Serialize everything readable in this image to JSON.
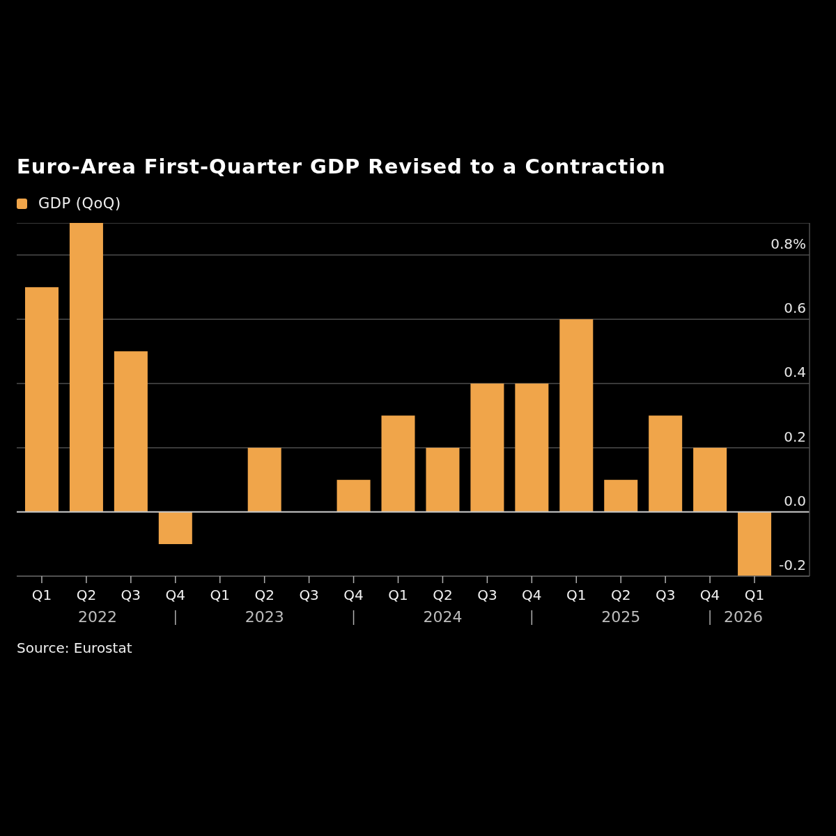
{
  "chart_data": {
    "type": "bar",
    "title": "Euro-Area First-Quarter GDP Revised to a Contraction",
    "categories": [
      "Q1",
      "Q2",
      "Q3",
      "Q4",
      "Q1",
      "Q2",
      "Q3",
      "Q4",
      "Q1",
      "Q2",
      "Q3",
      "Q4",
      "Q1",
      "Q2",
      "Q3",
      "Q4",
      "Q1"
    ],
    "series": [
      {
        "name": "GDP (QoQ)",
        "color": "#f0a54a",
        "values": [
          0.7,
          0.9,
          0.5,
          -0.1,
          0.0,
          0.2,
          0.0,
          0.1,
          0.3,
          0.2,
          0.4,
          0.4,
          0.6,
          0.1,
          0.3,
          0.2,
          -0.2
        ]
      }
    ],
    "ylim": [
      -0.2,
      0.9
    ],
    "yticks": [
      -0.2,
      {
        "value": 0,
        "label": "0.0"
      },
      0.2,
      0.4,
      0.6,
      {
        "value": 0.8,
        "label": "0.8%"
      }
    ],
    "grid": "y",
    "legend": "top left",
    "ref_lines": [
      {
        "axis": "y",
        "value": 0,
        "color": "#c8c8c8"
      }
    ],
    "annotations": [
      "2022",
      "2023",
      "2024",
      "2025",
      "2026",
      "Source: Eurostat"
    ]
  }
}
